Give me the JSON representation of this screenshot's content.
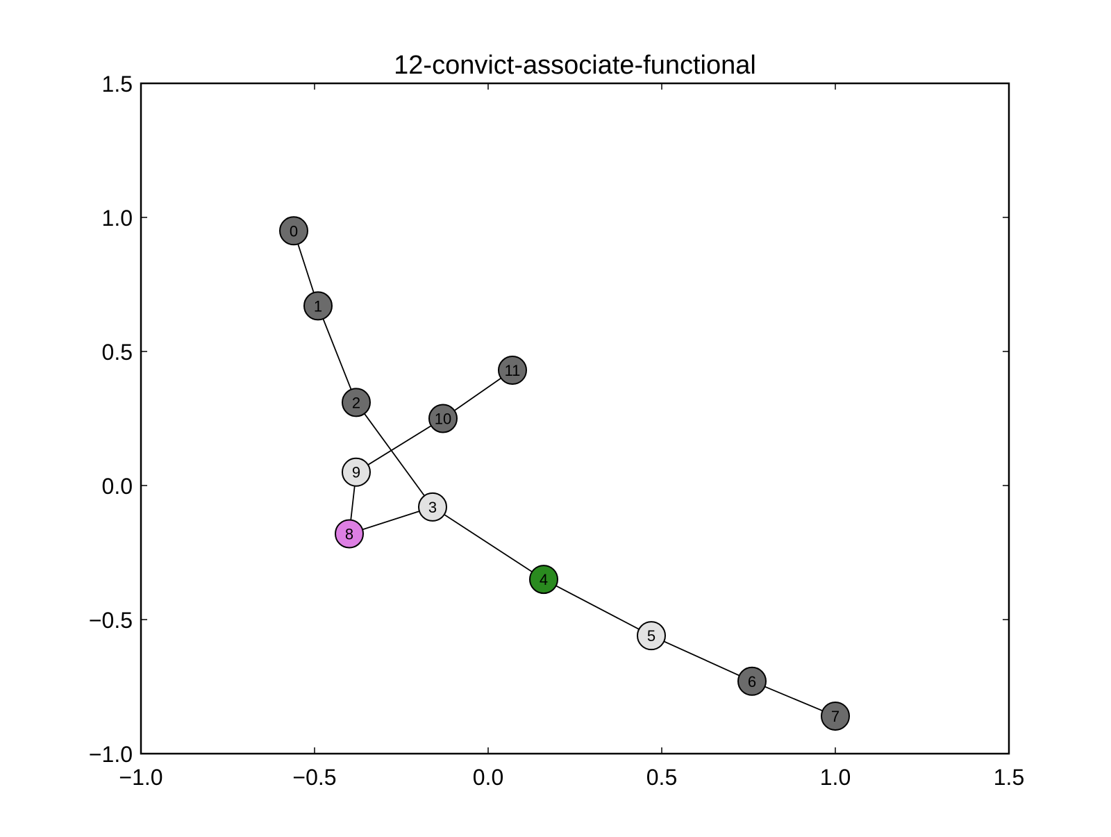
{
  "chart_data": {
    "type": "scatter",
    "title": "12-convict-associate-functional",
    "xlabel": "",
    "ylabel": "",
    "xlim": [
      -1.0,
      1.5
    ],
    "ylim": [
      -1.0,
      1.5
    ],
    "xticks": [
      -1.0,
      -0.5,
      0.0,
      0.5,
      1.0,
      1.5
    ],
    "yticks": [
      -1.0,
      -0.5,
      0.0,
      0.5,
      1.0,
      1.5
    ],
    "xtick_labels": [
      "−1.0",
      "−0.5",
      "0.0",
      "0.5",
      "1.0",
      "1.5"
    ],
    "ytick_labels": [
      "−1.0",
      "−0.5",
      "0.0",
      "0.5",
      "1.0",
      "1.5"
    ],
    "grid": false,
    "nodes": [
      {
        "label": "0",
        "x": -0.56,
        "y": 0.95,
        "color": "#6b6b6b"
      },
      {
        "label": "1",
        "x": -0.49,
        "y": 0.67,
        "color": "#6b6b6b"
      },
      {
        "label": "2",
        "x": -0.38,
        "y": 0.31,
        "color": "#6b6b6b"
      },
      {
        "label": "3",
        "x": -0.16,
        "y": -0.08,
        "color": "#e2e2e2"
      },
      {
        "label": "4",
        "x": 0.16,
        "y": -0.35,
        "color": "#2a8a1f"
      },
      {
        "label": "5",
        "x": 0.47,
        "y": -0.56,
        "color": "#e2e2e2"
      },
      {
        "label": "6",
        "x": 0.76,
        "y": -0.73,
        "color": "#6b6b6b"
      },
      {
        "label": "7",
        "x": 1.0,
        "y": -0.86,
        "color": "#6b6b6b"
      },
      {
        "label": "8",
        "x": -0.4,
        "y": -0.18,
        "color": "#dd7fe3"
      },
      {
        "label": "9",
        "x": -0.38,
        "y": 0.05,
        "color": "#e2e2e2"
      },
      {
        "label": "10",
        "x": -0.13,
        "y": 0.25,
        "color": "#6b6b6b"
      },
      {
        "label": "11",
        "x": 0.07,
        "y": 0.43,
        "color": "#6b6b6b"
      }
    ],
    "edges": [
      [
        0,
        1
      ],
      [
        1,
        2
      ],
      [
        2,
        3
      ],
      [
        3,
        4
      ],
      [
        4,
        5
      ],
      [
        5,
        6
      ],
      [
        6,
        7
      ],
      [
        3,
        8
      ],
      [
        8,
        9
      ],
      [
        9,
        10
      ],
      [
        10,
        11
      ]
    ]
  }
}
